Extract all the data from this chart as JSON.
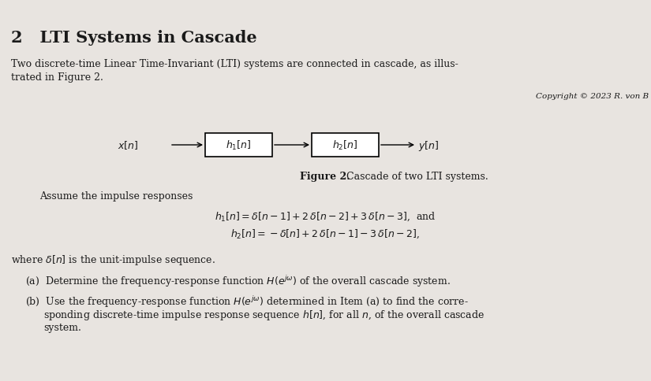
{
  "bg_color": "#e8e4e0",
  "title": "2   LTI Systems in Cascade",
  "intro_line1": "Two discrete-time Linear Time-Invariant (LTI) systems are connected in cascade, as illus-",
  "intro_line2": "trated in Figure 2.",
  "copyright": "Copyright © 2023 R. von B",
  "figure_caption_bold": "Figure 2.",
  "figure_caption_rest": " Cascade of two LTI systems.",
  "assume_text": "Assume the impulse responses",
  "eq1": "$h_1[n] = \\delta[n-1] + 2\\,\\delta[n-2] + 3\\,\\delta[n-3]$,  and",
  "eq2": "$h_2[n] = -\\delta[n] + 2\\,\\delta[n-1] - 3\\,\\delta[n-2]$,",
  "where_text": "where $\\delta[n]$ is the unit-impulse sequence.",
  "item_a_pre": "(a)  Determine the frequency-response function ",
  "item_a_math": "$H(e^{j\\omega})$",
  "item_a_post": " of the overall cascade system.",
  "item_b_line1_pre": "(b)  Use the frequency-response function ",
  "item_b_line1_math": "$H(e^{j\\omega})$",
  "item_b_line1_post": " determined in Item (a) to find the corre-",
  "item_b_line2": "       sponding discrete-time impulse response sequence $h[n]$, for all $n$, of the overall cascade",
  "item_b_line3": "       system.",
  "box1_label": "$h_1[n]$",
  "box2_label": "$h_2[n]$",
  "input_label": "$x[n]$",
  "output_label": "$y[n]$",
  "text_color": "#1a1a1a",
  "fontsize_title": 15,
  "fontsize_body": 9,
  "fontsize_small": 8
}
